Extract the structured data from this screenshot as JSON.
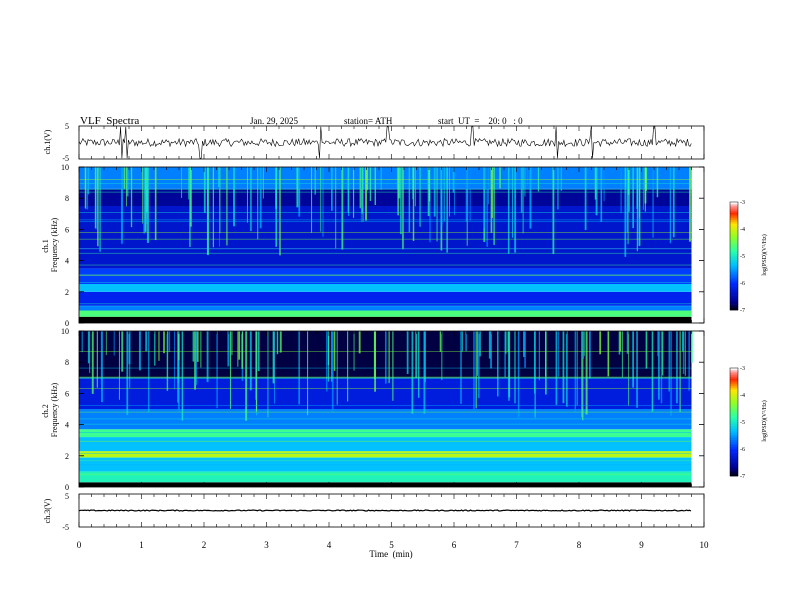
{
  "header": {
    "title": "VLF  Spectra",
    "date": "Jan. 29, 2025",
    "station": "station= ATH",
    "start": "start  UT  =    20: 0   : 0"
  },
  "chart_data": [
    {
      "type": "line",
      "name": "ch1-timeseries",
      "ylabel": "ch.1(V)",
      "ylim": [
        -5,
        5
      ],
      "yticks": [
        "5",
        "-5"
      ],
      "x_range": [
        0,
        10
      ],
      "data_end_min": 9.8,
      "baseline_v": 0,
      "noise_amplitude_v": 1.2,
      "spike_times_min": [
        0.68,
        0.75,
        1.95,
        3.85,
        4.95,
        6.3,
        7.65,
        8.2,
        9.2
      ]
    },
    {
      "type": "heatmap",
      "name": "ch1-spectrogram",
      "ylabel": "ch.1\nFrequency  (kHz)",
      "xlim": [
        0,
        10
      ],
      "ylim": [
        0,
        10
      ],
      "yticks": [
        "0",
        "2",
        "4",
        "6",
        "8",
        "10"
      ],
      "data_end_min": 9.8,
      "colorbar": {
        "label": "log(PSD)(V²/Hz)",
        "ticks": [
          "-3",
          "-4",
          "-5",
          "-6",
          "-7"
        ],
        "range": [
          -7,
          -3
        ]
      },
      "bands_khz": [
        {
          "from": 0.0,
          "to": 0.4,
          "level": -7.0
        },
        {
          "from": 0.4,
          "to": 0.8,
          "level": -4.6
        },
        {
          "from": 0.8,
          "to": 1.1,
          "level": -5.6
        },
        {
          "from": 1.1,
          "to": 2.0,
          "level": -6.1
        },
        {
          "from": 2.0,
          "to": 2.5,
          "level": -5.3
        },
        {
          "from": 2.5,
          "to": 3.5,
          "level": -5.9
        },
        {
          "from": 3.5,
          "to": 4.8,
          "level": -6.3
        },
        {
          "from": 4.8,
          "to": 7.5,
          "level": -6.3
        },
        {
          "from": 7.5,
          "to": 8.6,
          "level": -6.6
        },
        {
          "from": 8.6,
          "to": 10.0,
          "level": -5.6
        }
      ]
    },
    {
      "type": "heatmap",
      "name": "ch2-spectrogram",
      "ylabel": "ch.2\nFrequency  (kHz)",
      "xlim": [
        0,
        10
      ],
      "ylim": [
        0,
        10
      ],
      "yticks": [
        "0",
        "2",
        "4",
        "6",
        "8",
        "10"
      ],
      "data_end_min": 9.8,
      "colorbar": {
        "label": "log(PSD)(V²/Hz)",
        "ticks": [
          "-3",
          "-4",
          "-5",
          "-6",
          "-7"
        ],
        "range": [
          -7,
          -3
        ]
      },
      "bands_khz": [
        {
          "from": 0.0,
          "to": 0.3,
          "level": -7.0
        },
        {
          "from": 0.3,
          "to": 1.0,
          "level": -4.9
        },
        {
          "from": 1.0,
          "to": 1.9,
          "level": -5.3
        },
        {
          "from": 1.9,
          "to": 2.3,
          "level": -4.1
        },
        {
          "from": 2.3,
          "to": 3.2,
          "level": -5.3
        },
        {
          "from": 3.2,
          "to": 3.7,
          "level": -4.7
        },
        {
          "from": 3.7,
          "to": 5.0,
          "level": -5.6
        },
        {
          "from": 5.0,
          "to": 7.0,
          "level": -6.2
        },
        {
          "from": 7.0,
          "to": 10.0,
          "level": -6.85
        }
      ]
    },
    {
      "type": "line",
      "name": "ch3-timeseries",
      "ylabel": "ch.3(V)",
      "ylim": [
        -5,
        5
      ],
      "yticks": [
        "5",
        "-5"
      ],
      "x_range": [
        0,
        10
      ],
      "data_end_min": 9.8,
      "baseline_v": 0,
      "noise_amplitude_v": 0.15
    }
  ],
  "x_axis": {
    "label": "Time  (min)",
    "ticks": [
      "0",
      "1",
      "2",
      "3",
      "4",
      "5",
      "6",
      "7",
      "8",
      "9",
      "10"
    ]
  }
}
